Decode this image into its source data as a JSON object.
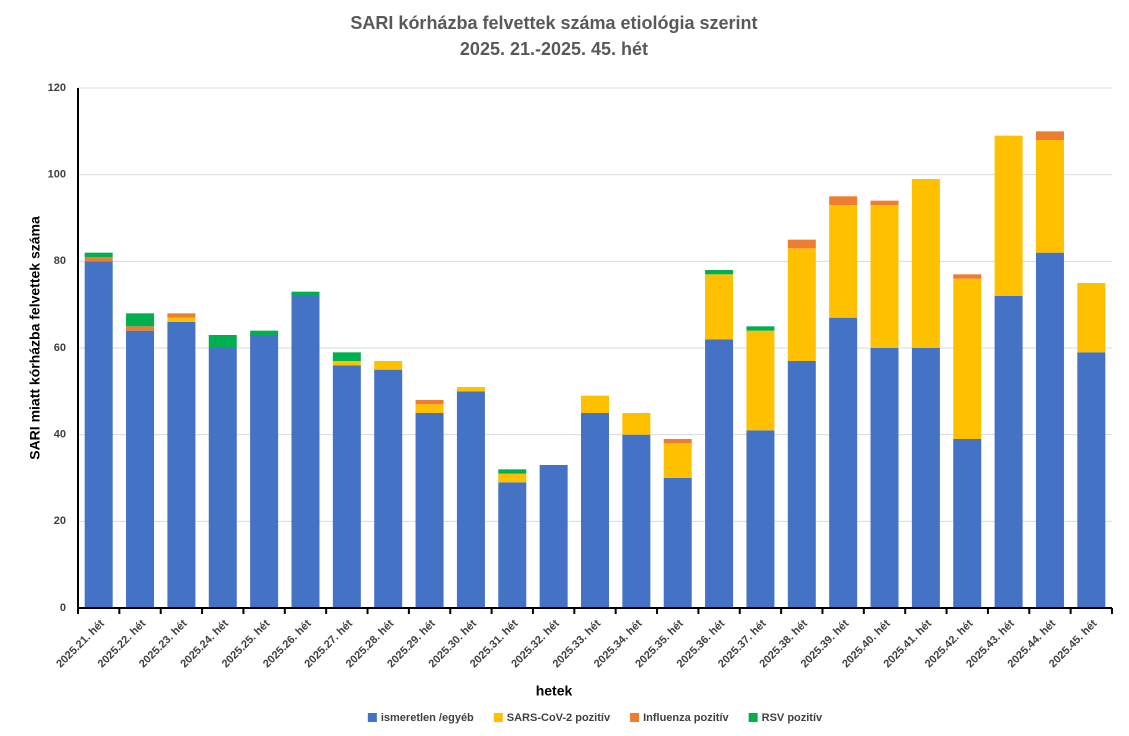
{
  "chart_data": {
    "type": "stacked-bar",
    "title": "SARI kórházba felvettek száma etiológia szerint",
    "subtitle": "2025. 21.-2025. 45. hét",
    "x_label": "hetek",
    "y_label": "SARI miatt kórházba felvettek száma",
    "categories": [
      "2025.21. hét",
      "2025.22. hét",
      "2025.23. hét",
      "2025.24. hét",
      "2025.25. hét",
      "2025.26. hét",
      "2025.27. hét",
      "2025.28. hét",
      "2025.29. hét",
      "2025.30. hét",
      "2025.31. hét",
      "2025.32. hét",
      "2025.33. hét",
      "2025.34. hét",
      "2025.35. hét",
      "2025.36. hét",
      "2025.37. hét",
      "2025.38. hét",
      "2025.39. hét",
      "2025.40. hét",
      "2025.41. hét",
      "2025.42. hét",
      "2025.43. hét",
      "2025.44. hét",
      "2025.45. hét"
    ],
    "series": [
      {
        "name": "ismeretlen /egyéb",
        "color": "#4472c4",
        "values": [
          80,
          64,
          66,
          60,
          63,
          72,
          56,
          55,
          45,
          50,
          29,
          33,
          45,
          40,
          30,
          62,
          41,
          57,
          67,
          60,
          60,
          39,
          72,
          82,
          59
        ]
      },
      {
        "name": "SARS-CoV-2 pozitív",
        "color": "#ffc000",
        "values": [
          0,
          0,
          1,
          0,
          0,
          0,
          1,
          2,
          2,
          1,
          2,
          0,
          4,
          5,
          8,
          15,
          23,
          26,
          26,
          33,
          39,
          37,
          37,
          26,
          16
        ]
      },
      {
        "name": "Influenza pozitív",
        "color": "#ed7d31",
        "values": [
          1,
          1,
          1,
          0,
          0,
          0,
          0,
          0,
          1,
          0,
          0,
          0,
          0,
          0,
          1,
          0,
          0,
          2,
          2,
          1,
          0,
          1,
          0,
          2,
          0
        ]
      },
      {
        "name": "RSV pozitív",
        "color": "#00b050",
        "values": [
          1,
          3,
          0,
          3,
          1,
          1,
          2,
          0,
          0,
          0,
          1,
          0,
          0,
          0,
          0,
          1,
          1,
          0,
          0,
          0,
          0,
          0,
          0,
          0,
          0
        ]
      }
    ],
    "ylim": [
      0,
      120
    ],
    "yticks": [
      0,
      20,
      40,
      60,
      80,
      100,
      120
    ],
    "grid": true,
    "legend": "bottom"
  }
}
